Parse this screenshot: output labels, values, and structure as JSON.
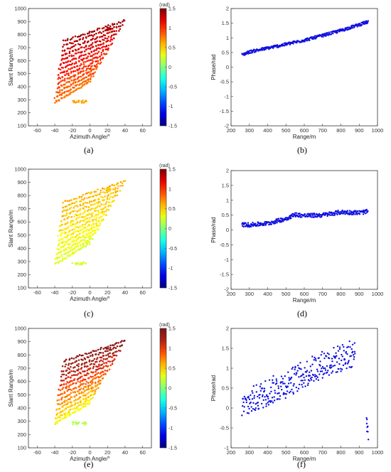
{
  "colorbar_unit": "(rad)",
  "chart_data": [
    {
      "panel": "a",
      "type": "scatter",
      "xlabel": "Azimuth Angle/°",
      "ylabel": "Slant Range/m",
      "xlim": [
        -70,
        70
      ],
      "ylim": [
        100,
        1000
      ],
      "xticks": [
        -60,
        -40,
        -20,
        0,
        20,
        40,
        60
      ],
      "yticks": [
        100,
        200,
        300,
        400,
        500,
        600,
        700,
        800,
        900,
        1000
      ],
      "colorbar": {
        "label": "(rad)",
        "min": -1.5,
        "max": 1.5,
        "ticks": [
          1.5,
          1,
          0.5,
          0,
          -0.5,
          -1,
          -1.5
        ],
        "colormap": "jet"
      },
      "series": [
        {
          "shape": "fan",
          "x": [
            -40,
            40
          ],
          "y": [
            280,
            850
          ],
          "phase_range": [
            0.6,
            1.4
          ]
        }
      ]
    },
    {
      "panel": "b",
      "type": "scatter",
      "xlabel": "Range/m",
      "ylabel": "Phase/rad",
      "xlim": [
        200,
        1000
      ],
      "ylim": [
        -2,
        2
      ],
      "xticks": [
        200,
        300,
        400,
        500,
        600,
        700,
        800,
        900,
        1000
      ],
      "yticks": [
        2,
        1.5,
        1,
        0.5,
        0,
        -0.5,
        -1,
        -1.5,
        -2
      ],
      "color": "#1010e0",
      "series": [
        {
          "x": [
            260,
            300,
            400,
            500,
            600,
            700,
            800,
            900,
            950
          ],
          "y": [
            0.42,
            0.52,
            0.65,
            0.78,
            0.92,
            1.08,
            1.25,
            1.45,
            1.55
          ],
          "spread": 0.05
        }
      ]
    },
    {
      "panel": "c",
      "type": "scatter",
      "xlabel": "Azimuth Angle/°",
      "ylabel": "Slant Range/m",
      "xlim": [
        -70,
        70
      ],
      "ylim": [
        100,
        1000
      ],
      "xticks": [
        -60,
        -40,
        -20,
        0,
        20,
        40,
        60
      ],
      "yticks": [
        100,
        200,
        300,
        400,
        500,
        600,
        700,
        800,
        900,
        1000
      ],
      "colorbar": {
        "label": "(rad)",
        "min": -1.5,
        "max": 1.5,
        "ticks": [
          1.5,
          1,
          0.5,
          0,
          -0.5,
          -1,
          -1.5
        ],
        "colormap": "jet"
      },
      "series": [
        {
          "shape": "fan",
          "x": [
            -40,
            40
          ],
          "y": [
            280,
            850
          ],
          "phase_range": [
            0.2,
            0.6
          ]
        }
      ]
    },
    {
      "panel": "d",
      "type": "scatter",
      "xlabel": "Range/m",
      "ylabel": "Phase/rad",
      "xlim": [
        200,
        1000
      ],
      "ylim": [
        -2,
        2
      ],
      "xticks": [
        200,
        300,
        400,
        500,
        600,
        700,
        800,
        900,
        1000
      ],
      "yticks": [
        2,
        1.5,
        1,
        0.5,
        0,
        -0.5,
        -1,
        -1.5,
        -2
      ],
      "color": "#1010e0",
      "series": [
        {
          "x": [
            260,
            300,
            400,
            500,
            550,
            600,
            700,
            800,
            900,
            950
          ],
          "y": [
            0.18,
            0.17,
            0.22,
            0.38,
            0.52,
            0.48,
            0.5,
            0.6,
            0.58,
            0.62
          ],
          "spread": 0.07
        }
      ]
    },
    {
      "panel": "e",
      "type": "scatter",
      "xlabel": "Azimuth Angle/°",
      "ylabel": "Slant Range/m",
      "xlim": [
        -70,
        70
      ],
      "ylim": [
        100,
        1000
      ],
      "xticks": [
        -60,
        -40,
        -20,
        0,
        20,
        40,
        60
      ],
      "yticks": [
        100,
        200,
        300,
        400,
        500,
        600,
        700,
        800,
        900,
        1000
      ],
      "colorbar": {
        "label": "(rad)",
        "min": -1.5,
        "max": 1.5,
        "ticks": [
          1.5,
          1,
          0.5,
          0,
          -0.5,
          -1,
          -1.5
        ],
        "colormap": "jet-dark"
      },
      "series": [
        {
          "shape": "fan",
          "x": [
            -40,
            40
          ],
          "y": [
            280,
            850
          ],
          "phase_range": [
            0.1,
            1.4
          ]
        }
      ]
    },
    {
      "panel": "f",
      "type": "scatter",
      "xlabel": "Range/m",
      "ylabel": "Phase/rad",
      "xlim": [
        200,
        1000
      ],
      "ylim": [
        -1,
        2
      ],
      "xticks": [
        200,
        300,
        400,
        500,
        600,
        700,
        800,
        900,
        1000
      ],
      "yticks": [
        2,
        1.5,
        1,
        0.5,
        0,
        -0.5,
        -1
      ],
      "color": "#1010e0",
      "series": [
        {
          "x": [
            260,
            300,
            400,
            500,
            600,
            700,
            800,
            880
          ],
          "y": [
            0.0,
            0.15,
            0.4,
            0.6,
            0.85,
            1.1,
            1.25,
            1.4
          ],
          "spread": 0.35
        },
        {
          "x": [
            940,
            945,
            950
          ],
          "y": [
            -0.3,
            -0.5,
            -0.7
          ],
          "spread": 0.15
        }
      ]
    }
  ],
  "captions": [
    "(a)",
    "(b)",
    "(c)",
    "(d)",
    "(e)",
    "(f)"
  ]
}
